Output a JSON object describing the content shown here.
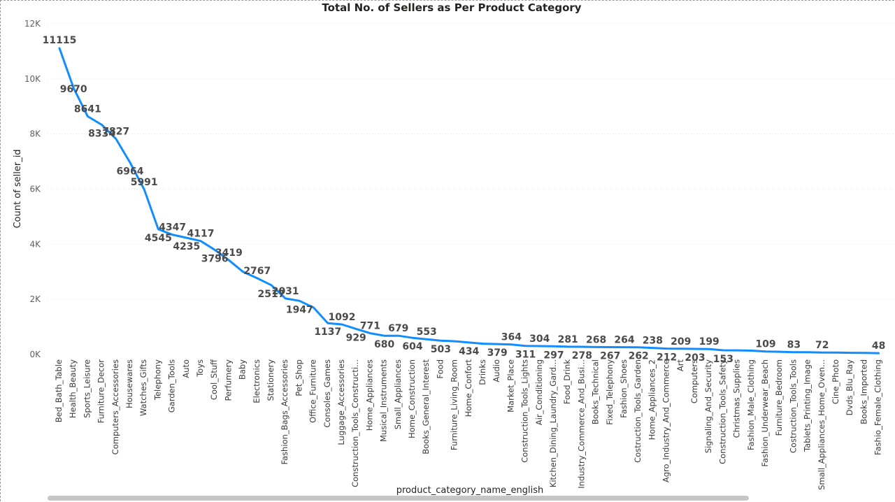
{
  "chart_data": {
    "type": "line",
    "title": "Total No. of Sellers as Per Product Category",
    "xlabel": "product_category_name_english",
    "ylabel": "Count of seller_id",
    "ylim": [
      0,
      12000
    ],
    "yticks": [
      {
        "value": 0,
        "label": "0K"
      },
      {
        "value": 2000,
        "label": "2K"
      },
      {
        "value": 4000,
        "label": "4K"
      },
      {
        "value": 6000,
        "label": "6K"
      },
      {
        "value": 8000,
        "label": "8K"
      },
      {
        "value": 10000,
        "label": "10K"
      },
      {
        "value": 12000,
        "label": "12K"
      }
    ],
    "grid": true,
    "line_color": "#118DFF",
    "categories": [
      "Bed_Bath_Table",
      "Health_Beauty",
      "Sports_Leisure",
      "Furniture_Decor",
      "Computers_Accessories",
      "Housewares",
      "Watches_Gifts",
      "Telephony",
      "Garden_Tools",
      "Auto",
      "Toys",
      "Cool_Stuff",
      "Perfumery",
      "Baby",
      "Electronics",
      "Stationery",
      "Fashion_Bags_Accessories",
      "Pet_Shop",
      "Office_Furniture",
      "Consoles_Games",
      "Luggage_Accessories",
      "Construction_Tools_Constructi...",
      "Home_Appliances",
      "Musical_Instruments",
      "Small_Appliances",
      "Home_Construction",
      "Books_General_Interest",
      "Food",
      "Furniture_Living_Room",
      "Home_Confort",
      "Drinks",
      "Audio",
      "Market_Place",
      "Construction_Tools_Lights",
      "Air_Conditioning",
      "Kitchen_Dining_Laundry_Gard...",
      "Food_Drink",
      "Industry_Commerce_And_Busi...",
      "Books_Technical",
      "Fixed_Telephony",
      "Fashion_Shoes",
      "Costruction_Tools_Garden",
      "Home_Appliances_2",
      "Agro_Industry_And_Commerce",
      "Art",
      "Computers",
      "Signaling_And_Security",
      "Construction_Tools_Safety",
      "Christmas_Supplies",
      "Fashion_Male_Clothing",
      "Fashion_Underwear_Beach",
      "Furniture_Bedroom",
      "Costruction_Tools_Tools",
      "Tablets_Printing_Image",
      "Small_Appliances_Home_Oven...",
      "Cine_Photo",
      "Dvds_Blu_Ray",
      "Books_Imported",
      "Fashio_Female_Clothing"
    ],
    "values": [
      11115,
      9670,
      8641,
      8334,
      7827,
      6964,
      5991,
      4545,
      4347,
      4235,
      4117,
      3796,
      3419,
      3000,
      2767,
      2517,
      2031,
      1947,
      1700,
      1137,
      1092,
      929,
      771,
      680,
      679,
      604,
      553,
      503,
      480,
      434,
      390,
      379,
      364,
      311,
      304,
      297,
      281,
      278,
      268,
      267,
      264,
      262,
      238,
      212,
      209,
      203,
      199,
      153,
      150,
      140,
      109,
      100,
      83,
      80,
      72,
      70,
      60,
      55,
      48
    ],
    "data_labels": [
      "11115",
      "9670",
      "8641",
      "8334",
      "7827",
      "6964",
      "5991",
      "4545",
      "4347",
      "4235",
      "4117",
      "3796",
      "3419",
      "",
      "2767",
      "2517",
      "2031",
      "1947",
      "",
      "1137",
      "1092",
      "929",
      "771",
      "680",
      "679",
      "604",
      "553",
      "503",
      "",
      "434",
      "",
      "379",
      "364",
      "311",
      "304",
      "297",
      "281",
      "278",
      "268",
      "267",
      "264",
      "262",
      "238",
      "212",
      "209",
      "203",
      "199",
      "153",
      "",
      "",
      "109",
      "",
      "83",
      "",
      "72",
      "",
      "",
      "",
      "48"
    ]
  }
}
